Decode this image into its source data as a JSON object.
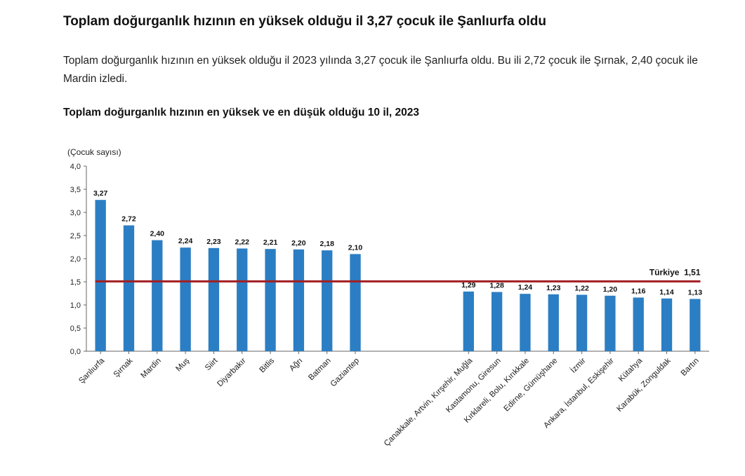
{
  "article": {
    "headline": "Toplam doğurganlık hızının en yüksek olduğu il 3,27 çocuk ile Şanlıurfa oldu",
    "intro": "Toplam doğurganlık hızının en yüksek olduğu il 2023 yılında 3,27 çocuk ile Şanlıurfa oldu. Bu ili 2,72 çocuk ile Şırnak, 2,40 çocuk ile Mardin izledi."
  },
  "chart_data": {
    "type": "bar",
    "title": "Toplam doğurganlık hızının en yüksek ve en düşük olduğu 10 il, 2023",
    "ylabel": "(Çocuk sayısı)",
    "xlabel": "",
    "ylim": [
      0,
      4
    ],
    "yticks": [
      "0,0",
      "0,5",
      "1,0",
      "1,5",
      "2,0",
      "2,5",
      "3,0",
      "3,5",
      "4,0"
    ],
    "color": "#2b7ec3",
    "reference_color": "#a31e22",
    "reference_line": {
      "label": "Türkiye  1,51",
      "value": 1.51
    },
    "groups": [
      {
        "name": "highest",
        "categories": [
          "Şanlıurfa",
          "Şırnak",
          "Mardin",
          "Muş",
          "Siirt",
          "Diyarbakır",
          "Bitlis",
          "Ağrı",
          "Batman",
          "Gaziantep"
        ],
        "values": [
          3.27,
          2.72,
          2.4,
          2.24,
          2.23,
          2.22,
          2.21,
          2.2,
          2.18,
          2.1
        ],
        "labels": [
          "3,27",
          "2,72",
          "2,40",
          "2,24",
          "2,23",
          "2,22",
          "2,21",
          "2,20",
          "2,18",
          "2,10"
        ]
      },
      {
        "name": "lowest",
        "categories": [
          "Çanakkale, Artvin, Kırşehir, Muğla",
          "Kastamonu, Giresun",
          "Kırklareli, Bolu, Kırıkkale",
          "Edirne, Gümüşhane",
          "İzmir",
          "Ankara, İstanbul, Eskişehir",
          "Kütahya",
          "Karabük, Zonguldak",
          "Bartın"
        ],
        "values": [
          1.29,
          1.28,
          1.24,
          1.23,
          1.22,
          1.2,
          1.16,
          1.14,
          1.13
        ],
        "labels": [
          "1,29",
          "1,28",
          "1,24",
          "1,23",
          "1,22",
          "1,20",
          "1,16",
          "1,14",
          "1,13"
        ]
      }
    ]
  }
}
